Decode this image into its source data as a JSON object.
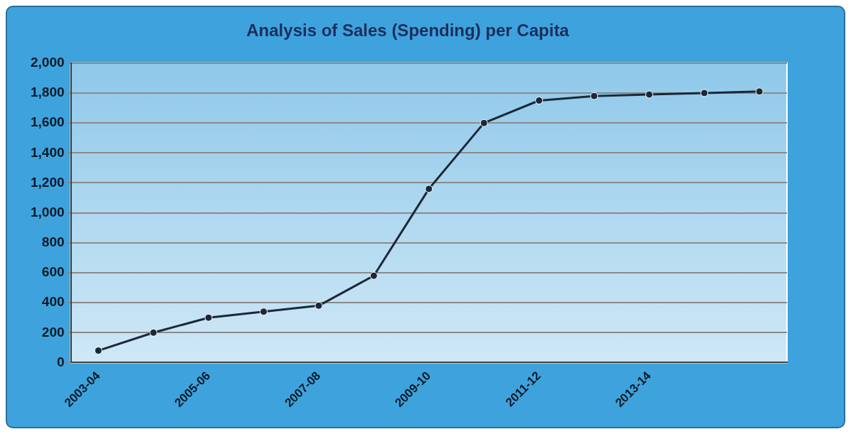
{
  "chart_data": {
    "type": "line",
    "title": "Analysis of Sales (Spending) per Capita",
    "categories": [
      "2003-04",
      null,
      "2005-06",
      null,
      "2007-08",
      null,
      "2009-10",
      null,
      "2011-12",
      null,
      "2013-14",
      null,
      null
    ],
    "series": [
      {
        "color": "#1b2838",
        "values": [
          80,
          200,
          300,
          340,
          380,
          580,
          1160,
          1600,
          1750,
          1780,
          1790,
          1800,
          1810
        ]
      }
    ],
    "ylim": [
      0,
      2000
    ],
    "yticks": [
      {
        "value": 0,
        "label": "0"
      },
      {
        "value": 200,
        "label": "200"
      },
      {
        "value": 400,
        "label": "400"
      },
      {
        "value": 600,
        "label": "600"
      },
      {
        "value": 800,
        "label": "800"
      },
      {
        "value": 1000,
        "label": "1,000"
      },
      {
        "value": 1200,
        "label": "1,200"
      },
      {
        "value": 1400,
        "label": "1,400"
      },
      {
        "value": 1600,
        "label": "1,600"
      },
      {
        "value": 1800,
        "label": "1,800"
      },
      {
        "value": 2000,
        "label": "2,000"
      }
    ],
    "grid": "y",
    "marker": "circle",
    "line_style": "solid",
    "legend": false
  }
}
